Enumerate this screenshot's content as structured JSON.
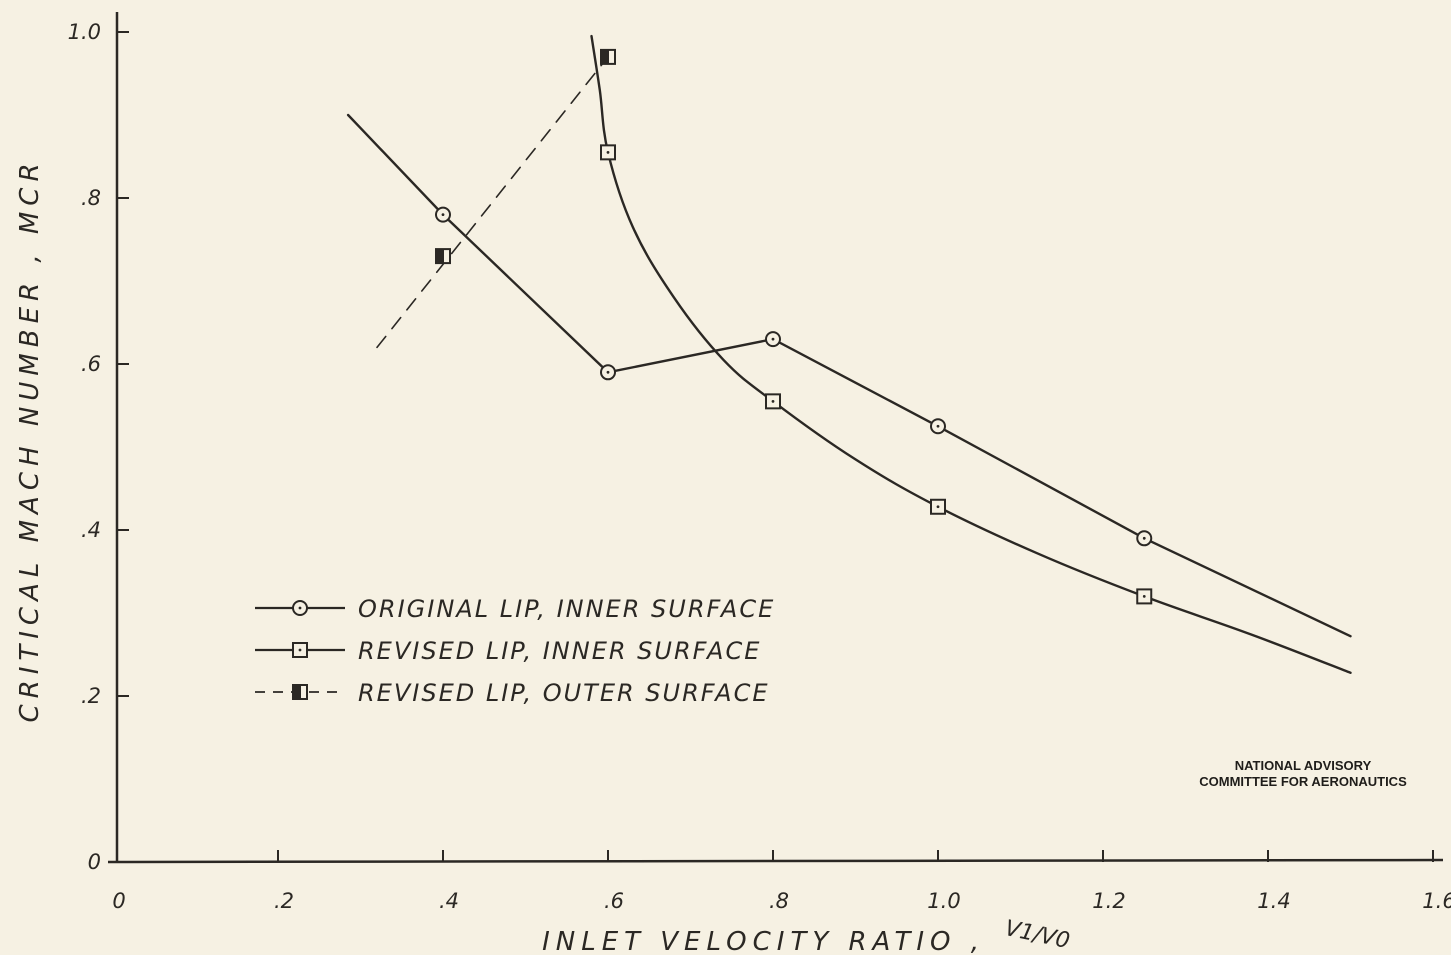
{
  "chart_data": {
    "type": "line",
    "xlabel": "INLET VELOCITY RATIO ,",
    "xlabel_symbol": "V1/V0",
    "ylabel": "CRITICAL MACH NUMBER , MCR",
    "xlim": [
      0,
      1.6
    ],
    "ylim": [
      0,
      1.0
    ],
    "x_ticks": [
      {
        "value": 0,
        "label": "0"
      },
      {
        "value": 0.2,
        "label": ".2"
      },
      {
        "value": 0.4,
        "label": ".4"
      },
      {
        "value": 0.6,
        "label": ".6"
      },
      {
        "value": 0.8,
        "label": ".8"
      },
      {
        "value": 1.0,
        "label": "1.0"
      },
      {
        "value": 1.2,
        "label": "1.2"
      },
      {
        "value": 1.4,
        "label": "1.4"
      },
      {
        "value": 1.6,
        "label": "1.6"
      }
    ],
    "y_ticks": [
      {
        "value": 0,
        "label": "0"
      },
      {
        "value": 0.2,
        "label": ".2"
      },
      {
        "value": 0.4,
        "label": ".4"
      },
      {
        "value": 0.6,
        "label": ".6"
      },
      {
        "value": 0.8,
        "label": ".8"
      },
      {
        "value": 1.0,
        "label": "1.0"
      }
    ],
    "grid": false,
    "legend_position": "lower-left",
    "series": [
      {
        "name": "ORIGINAL LIP, INNER SURFACE",
        "marker": "circle",
        "line_style": "solid",
        "points": [
          {
            "x": 0.4,
            "y": 0.78
          },
          {
            "x": 0.6,
            "y": 0.59
          },
          {
            "x": 0.8,
            "y": 0.63
          },
          {
            "x": 1.0,
            "y": 0.525
          },
          {
            "x": 1.25,
            "y": 0.39
          }
        ],
        "curve": [
          {
            "x": 0.285,
            "y": 0.9
          },
          {
            "x": 0.4,
            "y": 0.78
          },
          {
            "x": 0.6,
            "y": 0.59
          },
          {
            "x": 0.8,
            "y": 0.63
          },
          {
            "x": 1.0,
            "y": 0.525
          },
          {
            "x": 1.25,
            "y": 0.39
          },
          {
            "x": 1.5,
            "y": 0.272
          }
        ]
      },
      {
        "name": "REVISED LIP, INNER SURFACE",
        "marker": "square",
        "line_style": "solid",
        "points": [
          {
            "x": 0.6,
            "y": 0.855
          },
          {
            "x": 0.8,
            "y": 0.555
          },
          {
            "x": 1.0,
            "y": 0.428
          },
          {
            "x": 1.25,
            "y": 0.32
          }
        ],
        "curve": [
          {
            "x": 0.58,
            "y": 0.995
          },
          {
            "x": 0.59,
            "y": 0.93
          },
          {
            "x": 0.6,
            "y": 0.855
          },
          {
            "x": 0.63,
            "y": 0.765
          },
          {
            "x": 0.68,
            "y": 0.68
          },
          {
            "x": 0.74,
            "y": 0.605
          },
          {
            "x": 0.8,
            "y": 0.555
          },
          {
            "x": 0.9,
            "y": 0.485
          },
          {
            "x": 1.0,
            "y": 0.428
          },
          {
            "x": 1.12,
            "y": 0.372
          },
          {
            "x": 1.25,
            "y": 0.32
          },
          {
            "x": 1.38,
            "y": 0.274
          },
          {
            "x": 1.5,
            "y": 0.228
          }
        ]
      },
      {
        "name": "REVISED LIP, OUTER SURFACE",
        "marker": "half-filled-square",
        "line_style": "dashed",
        "points": [
          {
            "x": 0.4,
            "y": 0.73
          },
          {
            "x": 0.6,
            "y": 0.97
          }
        ],
        "curve": [
          {
            "x": 0.32,
            "y": 0.62
          },
          {
            "x": 0.6,
            "y": 0.97
          }
        ]
      }
    ]
  },
  "credit": {
    "line1": "NATIONAL ADVISORY",
    "line2": "COMMITTEE FOR AERONAUTICS"
  },
  "colors": {
    "paper": "#f6f1e3",
    "ink": "#2b2824"
  }
}
